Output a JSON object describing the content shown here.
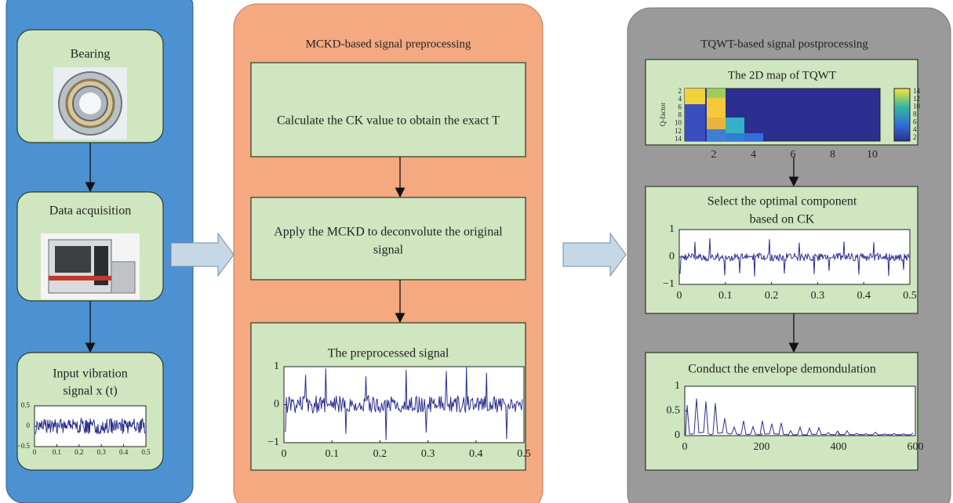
{
  "acquisition": {
    "nodes": [
      {
        "label": "Bearing"
      },
      {
        "label": "Data acquisition"
      },
      {
        "label_lines": [
          "Input vibration",
          "signal x (t)"
        ],
        "plot": {
          "yticks": [
            "0.5",
            "0",
            "−0.5"
          ],
          "xticks": [
            "0",
            "0.1",
            "0.2",
            "0.3",
            "0.4",
            "0.5"
          ]
        }
      }
    ]
  },
  "preprocessing": {
    "title": "MCKD-based signal preprocessing",
    "nodes": [
      {
        "label_lines": [
          "Calculate the CK value to obtain the exact T"
        ]
      },
      {
        "label_lines": [
          "Apply the MCKD to deconvolute the original",
          "signal"
        ]
      },
      {
        "label_lines": [
          "The preprocessed signal"
        ],
        "plot": {
          "yticks": [
            "1",
            "0",
            "−1"
          ],
          "xticks": [
            "0",
            "0.1",
            "0.2",
            "0.3",
            "0.4",
            "0.5"
          ]
        }
      }
    ]
  },
  "postprocessing": {
    "title": "TQWT-based signal postprocessing",
    "nodes": [
      {
        "label_lines": [
          "The 2D map of TQWT"
        ],
        "plot": {
          "ylabel": "Q-factor",
          "yticks": [
            "2",
            "4",
            "6",
            "8",
            "10",
            "12",
            "14"
          ],
          "xticks": [
            "2",
            "4",
            "6",
            "8",
            "10"
          ],
          "colorbar_ticks": [
            "14",
            "12",
            "10",
            "8",
            "6",
            "4",
            "2"
          ]
        }
      },
      {
        "label_lines": [
          "Select the optimal component",
          "based on CK"
        ],
        "plot": {
          "yticks": [
            "1",
            "0",
            "−1"
          ],
          "xticks": [
            "0",
            "0.1",
            "0.2",
            "0.3",
            "0.4",
            "0.5"
          ]
        }
      },
      {
        "label_lines": [
          "Conduct the envelope demondulation"
        ],
        "plot": {
          "yticks": [
            "1",
            "0.5",
            "0"
          ],
          "xticks": [
            "0",
            "200",
            "400",
            "600"
          ]
        }
      }
    ]
  }
}
